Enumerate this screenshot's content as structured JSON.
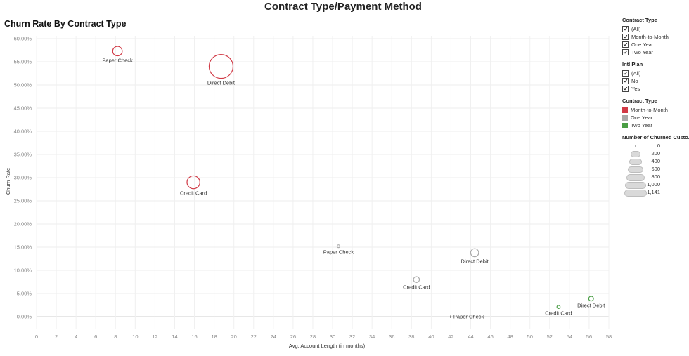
{
  "dashboard": {
    "title": "Contract Type/Payment Method"
  },
  "chart_data": {
    "type": "scatter",
    "title": "Churn Rate By Contract Type",
    "xlabel": "Avg. Account Length (in months)",
    "ylabel": "Churn Rate",
    "xlim": [
      0,
      58
    ],
    "ylim": [
      0,
      60
    ],
    "xticks": [
      "0",
      "2",
      "4",
      "6",
      "8",
      "10",
      "12",
      "14",
      "16",
      "18",
      "20",
      "22",
      "24",
      "26",
      "28",
      "30",
      "32",
      "34",
      "36",
      "38",
      "40",
      "42",
      "44",
      "46",
      "48",
      "50",
      "52",
      "54",
      "56",
      "58"
    ],
    "yticks": [
      "0.00%",
      "5.00%",
      "10.00%",
      "15.00%",
      "20.00%",
      "25.00%",
      "30.00%",
      "35.00%",
      "40.00%",
      "45.00%",
      "50.00%",
      "55.00%",
      "60.00%"
    ],
    "grid": true,
    "size_field": "Number of Churned Customers",
    "series": [
      {
        "name": "Month-to-Month",
        "color": "#d13a46",
        "points": [
          {
            "label": "Paper Check",
            "x": 8.2,
            "y": 57.3,
            "size": 180
          },
          {
            "label": "Direct Debit",
            "x": 18.7,
            "y": 54.0,
            "size": 1141
          },
          {
            "label": "Credit Card",
            "x": 15.9,
            "y": 29.0,
            "size": 330
          }
        ]
      },
      {
        "name": "One Year",
        "color": "#a9a9a9",
        "points": [
          {
            "label": "Paper Check",
            "x": 30.6,
            "y": 15.2,
            "size": 12
          },
          {
            "label": "Direct Debit",
            "x": 44.4,
            "y": 13.8,
            "size": 130
          },
          {
            "label": "Credit Card",
            "x": 38.5,
            "y": 8.0,
            "size": 70
          }
        ]
      },
      {
        "name": "Two Year",
        "color": "#4a9e45",
        "points": [
          {
            "label": "Direct Debit",
            "x": 56.2,
            "y": 3.9,
            "size": 45
          },
          {
            "label": "Credit Card",
            "x": 52.9,
            "y": 2.1,
            "size": 20
          },
          {
            "label": "Paper Check",
            "x": 42.0,
            "y": 0.0,
            "size": 0
          }
        ]
      }
    ]
  },
  "filters": [
    {
      "title": "Contract Type",
      "items": [
        "(All)",
        "Month-to-Month",
        "One Year",
        "Two Year"
      ]
    },
    {
      "title": "Intl Plan",
      "items": [
        "(All)",
        "No",
        "Yes"
      ]
    }
  ],
  "color_legend": {
    "title": "Contract Type",
    "items": [
      {
        "label": "Month-to-Month",
        "color": "#d13a46"
      },
      {
        "label": "One Year",
        "color": "#a9a9a9"
      },
      {
        "label": "Two Year",
        "color": "#4a9e45"
      }
    ]
  },
  "size_legend": {
    "title": "Number of Churned Custo..",
    "items": [
      "0",
      "200",
      "400",
      "600",
      "800",
      "1,000",
      "1,141"
    ]
  }
}
